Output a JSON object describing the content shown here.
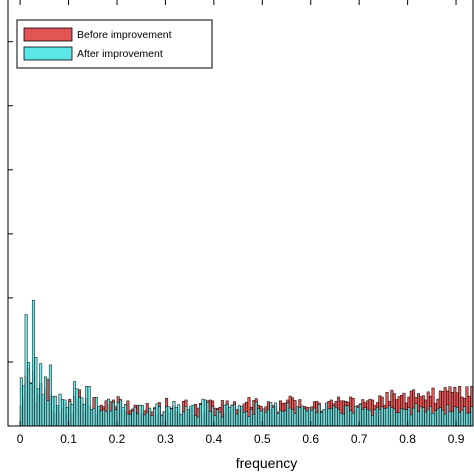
{
  "chart_data": {
    "type": "histogram",
    "xlabel": "frequency",
    "ylabel": "",
    "title": "",
    "xlim": [
      -0.025,
      0.935
    ],
    "ylim": [
      0,
      1.0
    ],
    "x_ticks": [
      0,
      0.1,
      0.2,
      0.3,
      0.4,
      0.5,
      0.6,
      0.7,
      0.8,
      0.9
    ],
    "x_tick_labels": [
      "0",
      "0.1",
      "0.2",
      "0.3",
      "0.4",
      "0.5",
      "0.6",
      "0.7",
      "0.8",
      "0.9"
    ],
    "y_ticks": [
      0,
      0.15,
      0.3,
      0.45,
      0.6,
      0.75,
      0.9
    ],
    "grid": false,
    "legend_position": "top-left",
    "bin_width": 0.005,
    "series": [
      {
        "name": "Before improvement",
        "color": "#e35555",
        "start": 0.0,
        "values": [
          0.047,
          0.066,
          0.117,
          0.135,
          0.101,
          0.128,
          0.056,
          0.075,
          0.1,
          0.068,
          0.085,
          0.11,
          0.073,
          0.033,
          0.028,
          0.044,
          0.03,
          0.042,
          0.054,
          0.028,
          0.063,
          0.028,
          0.07,
          0.063,
          0.085,
          0.052,
          0.034,
          0.064,
          0.047,
          0.036,
          0.067,
          0.026,
          0.039,
          0.049,
          0.045,
          0.059,
          0.049,
          0.057,
          0.061,
          0.045,
          0.069,
          0.062,
          0.036,
          0.035,
          0.059,
          0.036,
          0.04,
          0.049,
          0.048,
          0.026,
          0.03,
          0.036,
          0.053,
          0.035,
          0.033,
          0.043,
          0.026,
          0.055,
          0.026,
          0.033,
          0.065,
          0.03,
          0.042,
          0.048,
          0.033,
          0.031,
          0.025,
          0.058,
          0.061,
          0.035,
          0.041,
          0.025,
          0.051,
          0.042,
          0.053,
          0.024,
          0.033,
          0.059,
          0.061,
          0.059,
          0.042,
          0.041,
          0.044,
          0.06,
          0.029,
          0.059,
          0.033,
          0.049,
          0.057,
          0.039,
          0.037,
          0.041,
          0.052,
          0.056,
          0.067,
          0.044,
          0.06,
          0.064,
          0.049,
          0.046,
          0.039,
          0.045,
          0.057,
          0.037,
          0.048,
          0.045,
          0.033,
          0.059,
          0.053,
          0.054,
          0.061,
          0.07,
          0.066,
          0.06,
          0.043,
          0.062,
          0.037,
          0.046,
          0.044,
          0.041,
          0.045,
          0.057,
          0.058,
          0.054,
          0.035,
          0.037,
          0.047,
          0.058,
          0.061,
          0.052,
          0.058,
          0.068,
          0.059,
          0.059,
          0.058,
          0.056,
          0.068,
          0.065,
          0.037,
          0.048,
          0.052,
          0.062,
          0.055,
          0.059,
          0.063,
          0.061,
          0.048,
          0.055,
          0.071,
          0.068,
          0.049,
          0.079,
          0.058,
          0.084,
          0.076,
          0.062,
          0.069,
          0.072,
          0.077,
          0.054,
          0.068,
          0.082,
          0.085,
          0.067,
          0.076,
          0.069,
          0.071,
          0.061,
          0.08,
          0.07,
          0.089,
          0.053,
          0.063,
          0.082,
          0.081,
          0.09,
          0.082,
          0.092,
          0.079,
          0.091,
          0.078,
          0.093,
          0.068,
          0.065,
          0.092,
          0.07,
          0.093,
          0.088,
          0.081,
          0.074,
          0.087,
          0.085,
          0.078
        ]
      },
      {
        "name": "After improvement",
        "color": "#5ce6e6",
        "start": 0.0,
        "values": [
          0.113,
          0.094,
          0.261,
          0.149,
          0.099,
          0.294,
          0.161,
          0.087,
          0.146,
          0.073,
          0.115,
          0.059,
          0.143,
          0.069,
          0.07,
          0.048,
          0.075,
          0.062,
          0.061,
          0.044,
          0.057,
          0.05,
          0.104,
          0.087,
          0.067,
          0.066,
          0.051,
          0.093,
          0.093,
          0.039,
          0.041,
          0.067,
          0.046,
          0.035,
          0.038,
          0.034,
          0.063,
          0.035,
          0.056,
          0.038,
          0.055,
          0.061,
          0.043,
          0.051,
          0.028,
          0.027,
          0.035,
          0.044,
          0.029,
          0.049,
          0.048,
          0.026,
          0.032,
          0.042,
          0.024,
          0.041,
          0.052,
          0.046,
          0.025,
          0.033,
          0.046,
          0.045,
          0.04,
          0.058,
          0.044,
          0.05,
          0.027,
          0.033,
          0.046,
          0.038,
          0.047,
          0.049,
          0.025,
          0.021,
          0.05,
          0.063,
          0.061,
          0.055,
          0.034,
          0.045,
          0.024,
          0.038,
          0.032,
          0.021,
          0.049,
          0.051,
          0.044,
          0.048,
          0.051,
          0.028,
          0.048,
          0.046,
          0.032,
          0.034,
          0.022,
          0.039,
          0.027,
          0.056,
          0.041,
          0.035,
          0.04,
          0.032,
          0.039,
          0.055,
          0.044,
          0.054,
          0.029,
          0.037,
          0.034,
          0.036,
          0.054,
          0.042,
          0.039,
          0.029,
          0.045,
          0.043,
          0.047,
          0.04,
          0.035,
          0.043,
          0.037,
          0.042,
          0.031,
          0.051,
          0.032,
          0.039,
          0.054,
          0.04,
          0.041,
          0.047,
          0.044,
          0.039,
          0.03,
          0.028,
          0.048,
          0.047,
          0.036,
          0.03,
          0.046,
          0.043,
          0.051,
          0.039,
          0.043,
          0.039,
          0.037,
          0.025,
          0.038,
          0.044,
          0.039,
          0.045,
          0.041,
          0.042,
          0.047,
          0.043,
          0.04,
          0.031,
          0.031,
          0.041,
          0.039,
          0.038,
          0.043,
          0.026,
          0.042,
          0.052,
          0.034,
          0.045,
          0.043,
          0.033,
          0.039,
          0.046,
          0.03,
          0.036,
          0.04,
          0.043,
          0.037,
          0.028,
          0.05,
          0.033,
          0.034,
          0.045,
          0.044,
          0.032,
          0.037,
          0.045,
          0.03,
          0.031,
          0.045,
          0.035,
          0.045,
          0.034,
          0.028,
          0.048
        ]
      }
    ]
  }
}
